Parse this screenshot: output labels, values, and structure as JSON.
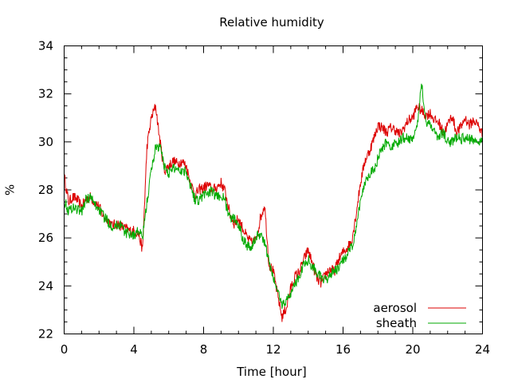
{
  "chart_data": {
    "type": "line",
    "title": "Relative humidity",
    "xlabel": "Time [hour]",
    "ylabel": "%",
    "xlim": [
      0,
      24
    ],
    "ylim": [
      22,
      34
    ],
    "x_major_ticks": [
      0,
      4,
      8,
      12,
      16,
      20,
      24
    ],
    "y_major_ticks": [
      22,
      24,
      26,
      28,
      30,
      32,
      34
    ],
    "x_tick_labels": [
      "0",
      "4",
      "8",
      "12",
      "16",
      "20",
      "24"
    ],
    "y_tick_labels": [
      "22",
      "24",
      "26",
      "28",
      "30",
      "32",
      "34"
    ],
    "grid": false,
    "legend_position": "bottom-right",
    "series": [
      {
        "name": "aerosol",
        "color": "#dd0000",
        "x": [
          0,
          0.25,
          0.5,
          0.75,
          1,
          1.25,
          1.5,
          1.75,
          2,
          2.25,
          2.5,
          2.75,
          3,
          3.25,
          3.5,
          3.75,
          4,
          4.25,
          4.5,
          4.75,
          5,
          5.25,
          5.5,
          5.75,
          6,
          6.25,
          6.5,
          6.75,
          7,
          7.25,
          7.5,
          7.75,
          8,
          8.25,
          8.5,
          8.75,
          9,
          9.25,
          9.5,
          9.75,
          10,
          10.25,
          10.5,
          10.75,
          11,
          11.25,
          11.5,
          11.75,
          12,
          12.25,
          12.5,
          12.75,
          13,
          13.25,
          13.5,
          13.75,
          14,
          14.25,
          14.5,
          14.75,
          15,
          15.25,
          15.5,
          15.75,
          16,
          16.25,
          16.5,
          16.75,
          17,
          17.25,
          17.5,
          17.75,
          18,
          18.25,
          18.5,
          18.75,
          19,
          19.25,
          19.5,
          19.75,
          20,
          20.25,
          20.5,
          20.75,
          21,
          21.25,
          21.5,
          21.75,
          22,
          22.25,
          22.5,
          22.75,
          23,
          23.25,
          23.5,
          23.75,
          24
        ],
        "values": [
          28.6,
          27.5,
          27.7,
          27.6,
          27.3,
          27.6,
          27.7,
          27.5,
          27.3,
          26.9,
          26.8,
          26.5,
          26.6,
          26.5,
          26.4,
          26.3,
          26.3,
          26.2,
          25.5,
          29.8,
          31.0,
          31.5,
          30.0,
          28.8,
          29.0,
          29.2,
          29.1,
          29.2,
          29.0,
          28.3,
          27.8,
          28.0,
          28.1,
          28.2,
          28.0,
          28.1,
          28.3,
          27.9,
          27.0,
          26.6,
          26.8,
          26.4,
          26.0,
          25.8,
          25.9,
          26.8,
          27.4,
          24.9,
          24.6,
          23.6,
          22.7,
          23.1,
          23.9,
          24.4,
          24.6,
          25.1,
          25.5,
          24.9,
          24.3,
          24.1,
          24.5,
          24.7,
          24.6,
          25.1,
          25.4,
          25.6,
          25.9,
          27.0,
          28.3,
          29.2,
          29.6,
          30.1,
          30.7,
          30.6,
          30.4,
          30.6,
          30.5,
          30.3,
          30.6,
          30.9,
          31.0,
          31.5,
          31.3,
          31.1,
          31.2,
          30.9,
          30.8,
          30.4,
          30.7,
          31.1,
          30.4,
          30.6,
          31.0,
          30.7,
          30.9,
          30.7,
          30.3
        ]
      },
      {
        "name": "sheath",
        "color": "#00aa00",
        "x": [
          0,
          0.25,
          0.5,
          0.75,
          1,
          1.25,
          1.5,
          1.75,
          2,
          2.25,
          2.5,
          2.75,
          3,
          3.25,
          3.5,
          3.75,
          4,
          4.25,
          4.5,
          4.75,
          5,
          5.25,
          5.5,
          5.75,
          6,
          6.25,
          6.5,
          6.75,
          7,
          7.25,
          7.5,
          7.75,
          8,
          8.25,
          8.5,
          8.75,
          9,
          9.25,
          9.5,
          9.75,
          10,
          10.25,
          10.5,
          10.75,
          11,
          11.25,
          11.5,
          11.75,
          12,
          12.25,
          12.5,
          12.75,
          13,
          13.25,
          13.5,
          13.75,
          14,
          14.25,
          14.5,
          14.75,
          15,
          15.25,
          15.5,
          15.75,
          16,
          16.25,
          16.5,
          16.75,
          17,
          17.25,
          17.5,
          17.75,
          18,
          18.25,
          18.5,
          18.75,
          19,
          19.25,
          19.5,
          19.75,
          20,
          20.25,
          20.5,
          20.75,
          21,
          21.25,
          21.5,
          21.75,
          22,
          22.25,
          22.5,
          22.75,
          23,
          23.25,
          23.5,
          23.75,
          24
        ],
        "values": [
          27.6,
          27.1,
          27.3,
          27.2,
          27.1,
          27.6,
          27.7,
          27.4,
          27.2,
          26.9,
          26.7,
          26.5,
          26.5,
          26.6,
          26.2,
          26.2,
          26.1,
          26.3,
          26.0,
          27.5,
          28.8,
          29.8,
          29.8,
          29.0,
          28.7,
          28.9,
          28.9,
          28.8,
          28.8,
          28.2,
          27.6,
          27.6,
          27.8,
          27.9,
          27.9,
          27.7,
          27.8,
          27.5,
          26.8,
          26.8,
          26.6,
          26.0,
          25.7,
          25.6,
          26.0,
          26.2,
          25.8,
          25.0,
          24.3,
          23.8,
          23.2,
          23.4,
          23.7,
          24.1,
          24.4,
          24.9,
          25.1,
          24.8,
          24.6,
          24.3,
          24.2,
          24.5,
          24.6,
          24.7,
          25.1,
          25.3,
          25.6,
          26.3,
          27.6,
          28.3,
          28.7,
          28.8,
          29.3,
          29.7,
          30.0,
          29.8,
          29.9,
          30.0,
          30.2,
          30.1,
          30.2,
          30.5,
          32.6,
          30.8,
          30.8,
          30.4,
          30.2,
          30.4,
          30.0,
          30.0,
          30.2,
          30.1,
          30.2,
          30.1,
          30.1,
          30.0,
          30.1
        ]
      }
    ]
  }
}
